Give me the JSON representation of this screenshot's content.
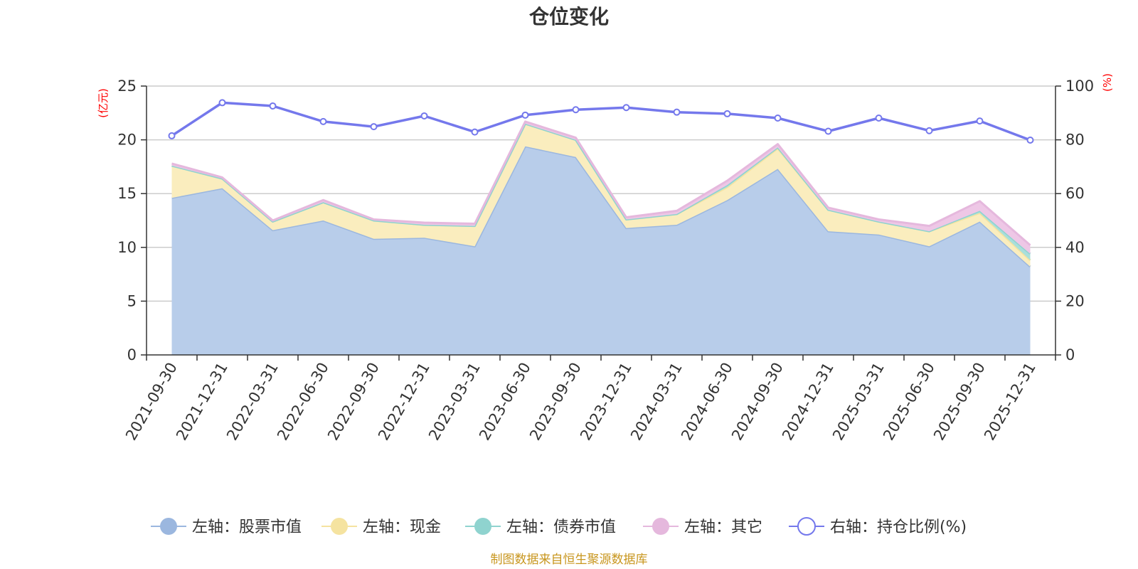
{
  "chart_data": {
    "type": "area",
    "title": "仓位变化",
    "left_axis_unit": "(亿元)",
    "right_axis_unit": "(%)",
    "categories": [
      "2021-09-30",
      "2021-12-31",
      "2022-03-31",
      "2022-06-30",
      "2022-09-30",
      "2022-12-31",
      "2023-03-31",
      "2023-06-30",
      "2023-09-30",
      "2023-12-31",
      "2024-03-31",
      "2024-06-30",
      "2024-09-30",
      "2024-12-31",
      "2025-03-31",
      "2025-06-30",
      "2025-09-30",
      "2025-12-31"
    ],
    "ylim_left": [
      0,
      25
    ],
    "yticks_left": [
      0,
      5,
      10,
      15,
      20,
      25
    ],
    "ylim_right": [
      0,
      100
    ],
    "yticks_right": [
      0,
      20,
      40,
      60,
      80,
      100
    ],
    "grid": true,
    "legend_position": "bottom",
    "series": [
      {
        "name": "左轴：股票市值",
        "axis": "left",
        "stack": true,
        "color": "#9bb7df",
        "fill": "#b8cdea",
        "values": [
          14.6,
          15.5,
          11.6,
          12.5,
          10.8,
          10.9,
          10.1,
          19.4,
          18.4,
          11.8,
          12.1,
          14.4,
          17.3,
          11.5,
          11.2,
          10.1,
          12.4,
          8.2
        ]
      },
      {
        "name": "左轴：现金",
        "axis": "left",
        "stack": true,
        "color": "#f5e3a0",
        "fill": "#faedbe",
        "values": [
          3.0,
          0.9,
          0.8,
          1.7,
          1.7,
          1.2,
          1.9,
          2.1,
          1.6,
          0.8,
          1.0,
          1.2,
          1.9,
          2.0,
          1.2,
          1.4,
          0.8,
          0.6
        ]
      },
      {
        "name": "左轴：债券市值",
        "axis": "left",
        "stack": true,
        "color": "#8fd3cf",
        "fill": "#a9dfdb",
        "values": [
          0,
          0,
          0,
          0,
          0,
          0,
          0,
          0,
          0,
          0,
          0,
          0.2,
          0.1,
          0,
          0,
          0,
          0.2,
          0.6
        ]
      },
      {
        "name": "左轴：其它",
        "axis": "left",
        "stack": true,
        "color": "#e5b8dd",
        "fill": "#eec7e6",
        "values": [
          0.2,
          0.1,
          0.1,
          0.2,
          0.1,
          0.2,
          0.2,
          0.2,
          0.2,
          0.2,
          0.3,
          0.4,
          0.3,
          0.2,
          0.2,
          0.5,
          0.9,
          0.8
        ]
      },
      {
        "name": "右轴：持仓比例(%)",
        "axis": "right",
        "type": "line",
        "color": "#7478ec",
        "values": [
          81.5,
          93.8,
          92.6,
          86.8,
          84.9,
          88.9,
          82.9,
          89.2,
          91.2,
          92.0,
          90.3,
          89.7,
          88.1,
          83.2,
          88.1,
          83.4,
          87.0,
          79.9
        ]
      }
    ]
  },
  "source_text": "制图数据来自恒生聚源数据库"
}
